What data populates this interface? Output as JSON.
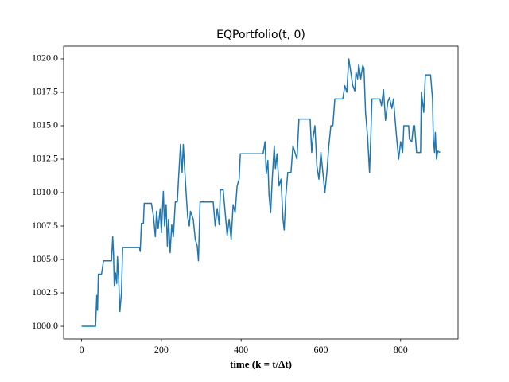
{
  "chart_data": {
    "type": "line",
    "title": "EQPortfolio(t, 0)",
    "x_label": "time (k = t/Δt)",
    "color": "#1f77b4",
    "x": [
      0,
      35,
      38,
      40,
      42,
      50,
      55,
      75,
      78,
      80,
      82,
      85,
      88,
      90,
      93,
      96,
      100,
      103,
      145,
      147,
      150,
      155,
      157,
      175,
      180,
      185,
      188,
      192,
      197,
      200,
      205,
      208,
      212,
      215,
      218,
      222,
      226,
      230,
      235,
      240,
      243,
      248,
      252,
      255,
      258,
      262,
      266,
      270,
      273,
      280,
      285,
      290,
      293,
      297,
      330,
      335,
      340,
      345,
      348,
      355,
      360,
      365,
      370,
      375,
      380,
      385,
      390,
      395,
      398,
      455,
      460,
      463,
      467,
      470,
      474,
      478,
      483,
      486,
      490,
      495,
      500,
      505,
      508,
      512,
      517,
      525,
      530,
      535,
      540,
      545,
      573,
      577,
      580,
      585,
      590,
      595,
      600,
      605,
      610,
      615,
      620,
      625,
      630,
      635,
      655,
      660,
      665,
      670,
      675,
      680,
      685,
      688,
      692,
      695,
      700,
      705,
      708,
      712,
      717,
      722,
      725,
      728,
      748,
      752,
      757,
      762,
      768,
      772,
      778,
      782,
      786,
      790,
      795,
      800,
      805,
      808,
      820,
      822,
      828,
      832,
      835,
      840,
      850,
      852,
      858,
      862,
      875,
      880,
      882,
      885,
      887,
      890,
      893,
      899
    ],
    "values": [
      1000.0,
      1000.0,
      1002.3,
      1001.2,
      1003.9,
      1003.9,
      1004.9,
      1004.9,
      1006.7,
      1005.5,
      1003.0,
      1004.0,
      1003.2,
      1005.2,
      1003.5,
      1001.1,
      1002.5,
      1005.9,
      1005.9,
      1005.6,
      1007.7,
      1007.7,
      1009.2,
      1009.2,
      1008.3,
      1006.7,
      1008.6,
      1007.3,
      1008.8,
      1007.0,
      1010.1,
      1007.5,
      1009.1,
      1006.0,
      1008.0,
      1005.5,
      1007.6,
      1006.7,
      1009.3,
      1009.3,
      1011.0,
      1013.6,
      1011.5,
      1013.6,
      1012.0,
      1010.0,
      1008.2,
      1007.5,
      1008.6,
      1008.0,
      1006.5,
      1006.0,
      1004.9,
      1009.3,
      1009.3,
      1007.5,
      1008.8,
      1007.6,
      1010.2,
      1010.2,
      1008.5,
      1006.8,
      1008.0,
      1006.5,
      1009.1,
      1008.5,
      1010.5,
      1011.0,
      1012.9,
      1012.9,
      1013.8,
      1011.4,
      1012.4,
      1009.8,
      1008.5,
      1011.0,
      1013.5,
      1011.8,
      1012.9,
      1010.5,
      1011.0,
      1008.0,
      1007.2,
      1009.7,
      1011.5,
      1011.5,
      1013.5,
      1013.0,
      1012.5,
      1015.5,
      1015.5,
      1013.0,
      1014.0,
      1015.0,
      1012.0,
      1011.0,
      1013.0,
      1011.5,
      1010.0,
      1011.5,
      1013.5,
      1015.0,
      1015.0,
      1017.0,
      1017.0,
      1018.0,
      1017.5,
      1020.0,
      1019.0,
      1018.0,
      1017.6,
      1019.0,
      1018.5,
      1019.6,
      1018.5,
      1019.5,
      1019.3,
      1016.0,
      1014.2,
      1011.5,
      1014.0,
      1017.0,
      1017.0,
      1016.5,
      1017.7,
      1015.4,
      1016.8,
      1017.1,
      1016.3,
      1017.0,
      1015.5,
      1014.1,
      1012.5,
      1013.8,
      1013.0,
      1015.0,
      1015.0,
      1014.0,
      1013.8,
      1015.0,
      1015.0,
      1013.0,
      1013.0,
      1017.5,
      1016.0,
      1018.8,
      1018.8,
      1017.0,
      1014.0,
      1013.0,
      1014.5,
      1012.5,
      1013.1,
      1013.0
    ],
    "xlim": [
      -45,
      944
    ],
    "ylim": [
      999.05,
      1020.95
    ],
    "xticks": [
      0,
      200,
      400,
      600,
      800
    ],
    "yticks": [
      {
        "value": 1000,
        "label": "1000.0"
      },
      {
        "value": 1002.5,
        "label": "1002.5"
      },
      {
        "value": 1005,
        "label": "1005.0"
      },
      {
        "value": 1007.5,
        "label": "1007.5"
      },
      {
        "value": 1010,
        "label": "1010.0"
      },
      {
        "value": 1012.5,
        "label": "1012.5"
      },
      {
        "value": 1015,
        "label": "1015.0"
      },
      {
        "value": 1017.5,
        "label": "1017.5"
      },
      {
        "value": 1020,
        "label": "1020.0"
      }
    ]
  }
}
